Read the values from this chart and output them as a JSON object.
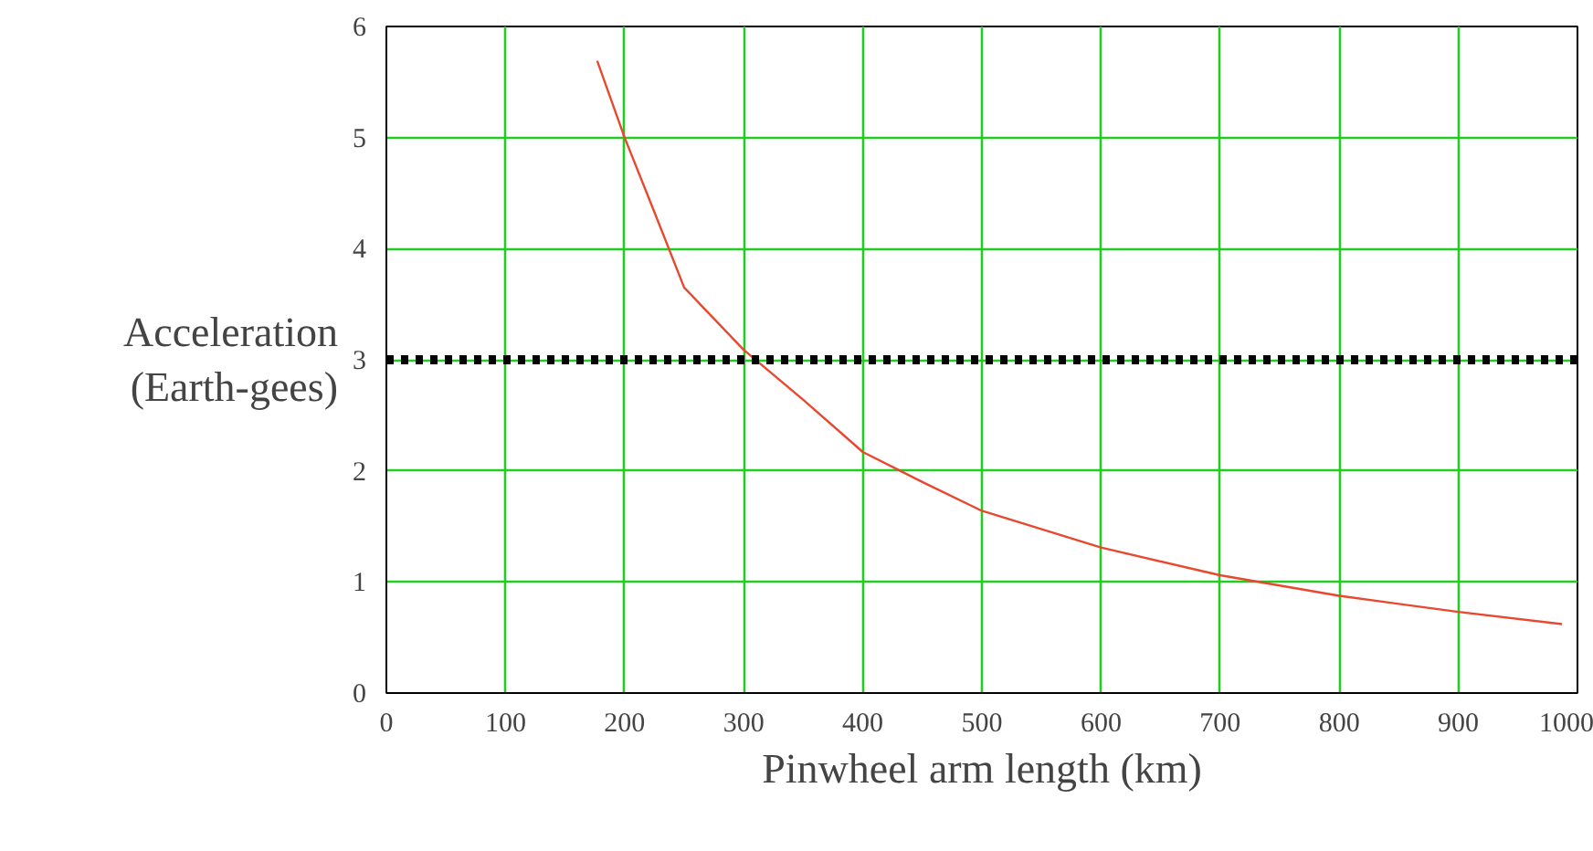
{
  "chart_data": {
    "type": "line",
    "xlabel": "Pinwheel arm length (km)",
    "ylabel": "Acceleration\n(Earth-gees)",
    "xlim": [
      0,
      1000
    ],
    "ylim": [
      0,
      6
    ],
    "xticks": [
      0,
      100,
      200,
      300,
      400,
      500,
      600,
      700,
      800,
      900,
      1000
    ],
    "yticks": [
      0,
      1,
      2,
      3,
      4,
      5,
      6
    ],
    "grid": true,
    "series": [
      {
        "color": "#e8482e",
        "x": [
          177,
          200,
          225,
          250,
          300,
          350,
          400,
          450,
          500,
          600,
          700,
          800,
          900,
          987
        ],
        "values": [
          5.69,
          5.0,
          4.33,
          3.65,
          3.09,
          2.64,
          2.17,
          1.9,
          1.64,
          1.31,
          1.06,
          0.875,
          0.73,
          0.62
        ]
      }
    ],
    "ref_lines": [
      {
        "axis": "y",
        "value": 3,
        "color": "#000000",
        "line_style": "dotted"
      }
    ]
  }
}
